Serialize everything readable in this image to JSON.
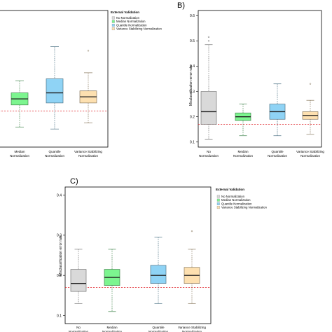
{
  "panels": [
    {
      "id": "A",
      "panel_label": "",
      "legend_title": "External Validation",
      "ylabel": "",
      "categories": [
        "Median Normalization",
        "Quantile Normalization",
        "Variance Stabilizing Normalization"
      ]
    },
    {
      "id": "B",
      "panel_label": "B)",
      "legend_title": "",
      "ylabel": "Misclassification error rate",
      "categories": [
        "No Normalization",
        "Median Normalization",
        "Quantile Normalization",
        "Variance Stabilizing Normalization"
      ]
    },
    {
      "id": "C",
      "panel_label": "C)",
      "legend_title": "External Validation",
      "ylabel": "Misclassification error rate",
      "categories": [
        "No Normalization",
        "Median Normalization",
        "Quantile Normalization",
        "Variance Stabilizing Normalization"
      ]
    }
  ],
  "legend_entries": [
    {
      "label": "No Normalization",
      "color": "#d9d9d9"
    },
    {
      "label": "Median Normalization",
      "color": "#7cf58f"
    },
    {
      "label": "Quantile Normalization",
      "color": "#8fd3f5"
    },
    {
      "label": "Variance Stabilizing Normalization",
      "color": "#fde0b0"
    }
  ],
  "chart_data": [
    {
      "type": "box",
      "panel": "A",
      "ylim": [
        0.08,
        0.42
      ],
      "reference_line": 0.17,
      "series": [
        {
          "name": "Median Normalization",
          "color": "#7cf58f",
          "whisker_low": 0.13,
          "q1": 0.185,
          "median": 0.2,
          "q3": 0.215,
          "whisker_high": 0.245,
          "outliers": []
        },
        {
          "name": "Quantile Normalization",
          "color": "#8fd3f5",
          "whisker_low": 0.125,
          "q1": 0.19,
          "median": 0.215,
          "q3": 0.25,
          "whisker_high": 0.33,
          "outliers": []
        },
        {
          "name": "Variance Stabilizing Normalization",
          "color": "#fde0b0",
          "whisker_low": 0.14,
          "q1": 0.19,
          "median": 0.205,
          "q3": 0.22,
          "whisker_high": 0.265,
          "outliers": [
            0.32
          ]
        }
      ]
    },
    {
      "type": "box",
      "panel": "B",
      "yticks": [
        0.1,
        0.2,
        0.3,
        0.4,
        0.5,
        0.6
      ],
      "ylim": [
        0.08,
        0.62
      ],
      "reference_line": 0.17,
      "series": [
        {
          "name": "No Normalization",
          "color": "#d9d9d9",
          "whisker_low": 0.11,
          "q1": 0.17,
          "median": 0.22,
          "q3": 0.3,
          "whisker_high": 0.485,
          "outliers": [
            0.5,
            0.515
          ]
        },
        {
          "name": "Median Normalization",
          "color": "#7cf58f",
          "whisker_low": 0.125,
          "q1": 0.185,
          "median": 0.2,
          "q3": 0.215,
          "whisker_high": 0.25,
          "outliers": []
        },
        {
          "name": "Quantile Normalization",
          "color": "#8fd3f5",
          "whisker_low": 0.125,
          "q1": 0.19,
          "median": 0.22,
          "q3": 0.25,
          "whisker_high": 0.33,
          "outliers": []
        },
        {
          "name": "Variance Stabilizing Normalization",
          "color": "#fde0b0",
          "whisker_low": 0.13,
          "q1": 0.19,
          "median": 0.205,
          "q3": 0.22,
          "whisker_high": 0.265,
          "outliers": [
            0.33
          ]
        }
      ]
    },
    {
      "type": "box",
      "panel": "C",
      "yticks": [
        0.1,
        0.2,
        0.3,
        0.4
      ],
      "ylim": [
        0.08,
        0.42
      ],
      "reference_line": 0.17,
      "series": [
        {
          "name": "No Normalization",
          "color": "#d9d9d9",
          "whisker_low": 0.13,
          "q1": 0.16,
          "median": 0.18,
          "q3": 0.215,
          "whisker_high": 0.265,
          "outliers": []
        },
        {
          "name": "Median Normalization",
          "color": "#7cf58f",
          "whisker_low": 0.11,
          "q1": 0.175,
          "median": 0.195,
          "q3": 0.215,
          "whisker_high": 0.265,
          "outliers": []
        },
        {
          "name": "Quantile Normalization",
          "color": "#8fd3f5",
          "whisker_low": 0.13,
          "q1": 0.18,
          "median": 0.2,
          "q3": 0.225,
          "whisker_high": 0.295,
          "outliers": []
        },
        {
          "name": "Variance Stabilizing Normalization",
          "color": "#fde0b0",
          "whisker_low": 0.13,
          "q1": 0.18,
          "median": 0.2,
          "q3": 0.22,
          "whisker_high": 0.265,
          "outliers": [
            0.31
          ]
        }
      ]
    }
  ]
}
